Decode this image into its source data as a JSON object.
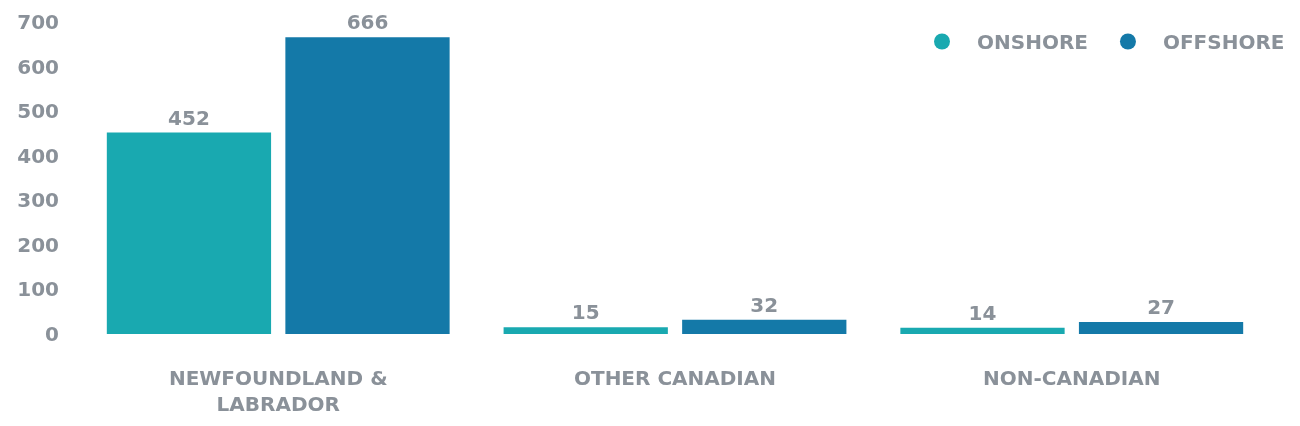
{
  "chart_data": {
    "type": "bar",
    "categories": [
      "NEWFOUNDLAND & LABRADOR",
      "OTHER CANADIAN",
      "NON-CANADIAN"
    ],
    "series": [
      {
        "name": "ONSHORE",
        "color": "#19a9b0",
        "values": [
          452,
          15,
          14
        ]
      },
      {
        "name": "OFFSHORE",
        "color": "#1479a8",
        "values": [
          666,
          32,
          27
        ]
      }
    ],
    "ylim": [
      0,
      700
    ],
    "yticks": [
      0,
      100,
      200,
      300,
      400,
      500,
      600,
      700
    ],
    "data_labels": true,
    "legend": "top right"
  }
}
